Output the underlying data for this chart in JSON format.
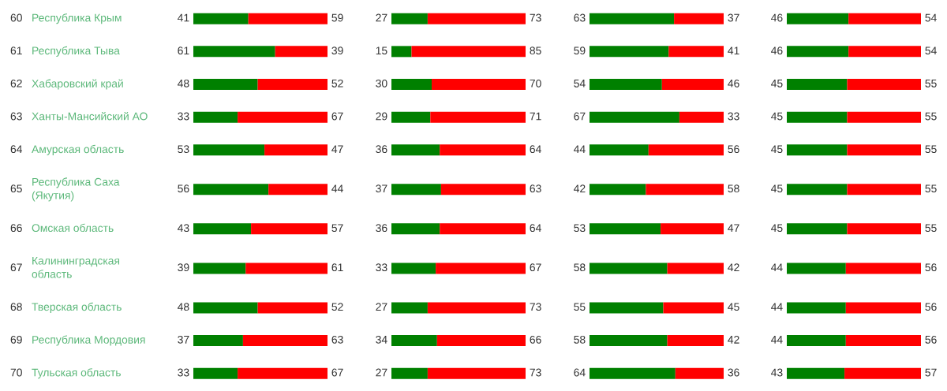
{
  "chart_data": [
    {
      "type": "bar",
      "orientation": "horizontal",
      "stacked": true,
      "data_labels": true,
      "tick_labels": "y",
      "categories": [
        "60 Республика Крым",
        "61 Республика Тыва",
        "62 Хабаровский край",
        "63 Ханты-Мансийский АО",
        "64 Амурская область",
        "65 Республика Саха (Якутия)",
        "66 Омская область",
        "67 Калининградская область",
        "68 Тверская область",
        "69 Республика Мордовия",
        "70 Тульская область"
      ],
      "series": [
        {
          "color": "#008000",
          "values": [
            41,
            61,
            48,
            33,
            53,
            56,
            43,
            39,
            48,
            37,
            33
          ]
        },
        {
          "color": "#ff0000",
          "values": [
            59,
            39,
            52,
            67,
            47,
            44,
            57,
            61,
            52,
            63,
            67
          ]
        }
      ]
    },
    {
      "type": "bar",
      "orientation": "horizontal",
      "stacked": true,
      "data_labels": true,
      "series": [
        {
          "color": "#008000",
          "values": [
            27,
            15,
            30,
            29,
            36,
            37,
            36,
            33,
            27,
            34,
            27
          ]
        },
        {
          "color": "#ff0000",
          "values": [
            73,
            85,
            70,
            71,
            64,
            63,
            64,
            67,
            73,
            66,
            73
          ]
        }
      ]
    },
    {
      "type": "bar",
      "orientation": "horizontal",
      "stacked": true,
      "data_labels": true,
      "series": [
        {
          "color": "#008000",
          "values": [
            63,
            59,
            54,
            67,
            44,
            42,
            53,
            58,
            55,
            58,
            64
          ]
        },
        {
          "color": "#ff0000",
          "values": [
            37,
            41,
            46,
            33,
            56,
            58,
            47,
            42,
            45,
            42,
            36
          ]
        }
      ]
    },
    {
      "type": "bar",
      "orientation": "horizontal",
      "stacked": true,
      "data_labels": true,
      "series": [
        {
          "color": "#008000",
          "values": [
            46,
            46,
            45,
            45,
            45,
            45,
            45,
            44,
            44,
            44,
            43
          ]
        },
        {
          "color": "#ff0000",
          "values": [
            54,
            54,
            55,
            55,
            55,
            55,
            55,
            56,
            56,
            56,
            57
          ]
        }
      ]
    }
  ]
}
